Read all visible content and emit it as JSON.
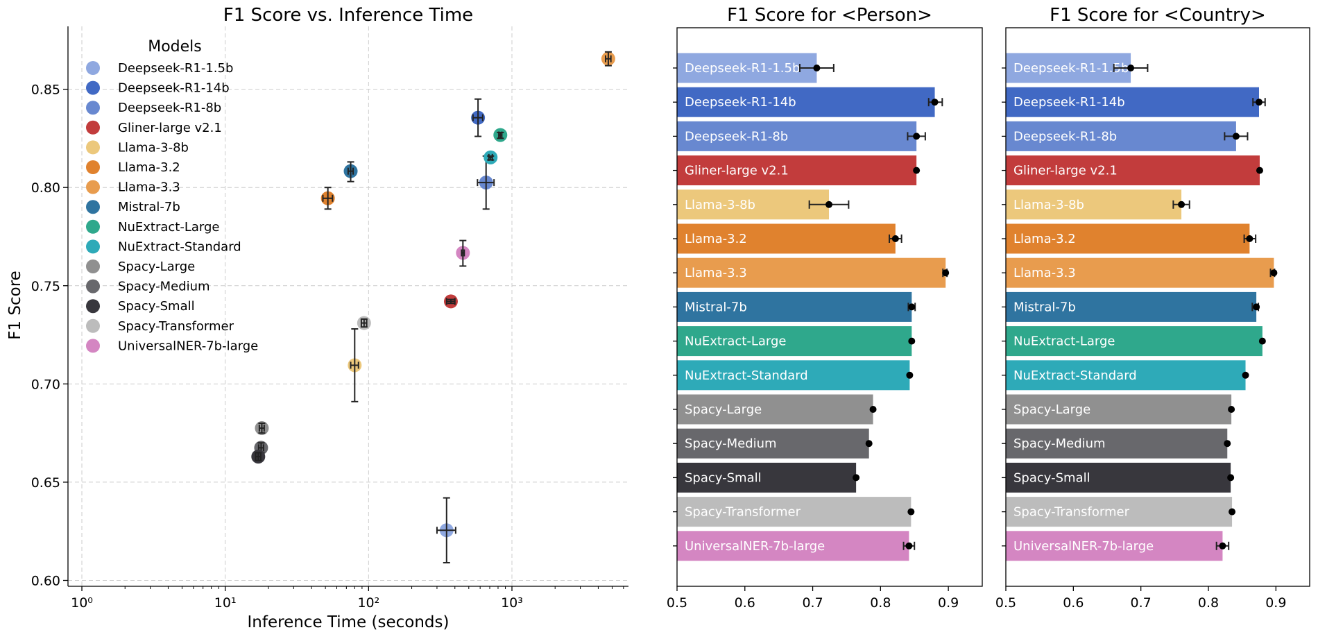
{
  "colors": {
    "Deepseek-R1-1.5b": "#8fa8e0",
    "Deepseek-R1-14b": "#4169c4",
    "Deepseek-R1-8b": "#6888d0",
    "Gliner-large v2.1": "#c23c3c",
    "Llama-3-8b": "#ecc87c",
    "Llama-3.2": "#e0822e",
    "Llama-3.3": "#e89c4e",
    "Mistral-7b": "#2f74a0",
    "NuExtract-Large": "#2fa88c",
    "NuExtract-Standard": "#2eaab8",
    "Spacy-Large": "#909090",
    "Spacy-Medium": "#68686c",
    "Spacy-Small": "#38373d",
    "Spacy-Transformer": "#bcbcbc",
    "UniversalNER-7b-large": "#d486c2"
  },
  "chart_data": [
    {
      "type": "scatter",
      "title": "F1 Score vs. Inference Time",
      "xlabel": "Inference Time (seconds)",
      "ylabel": "F1 Score",
      "xscale": "log",
      "xlim": [
        0.8,
        6500
      ],
      "ylim": [
        0.597,
        0.882
      ],
      "xticks": [
        {
          "value": 1,
          "label": "10⁰"
        },
        {
          "value": 10,
          "label": "10¹"
        },
        {
          "value": 100,
          "label": "10²"
        },
        {
          "value": 1000,
          "label": "10³"
        }
      ],
      "yticks": [
        0.6,
        0.65,
        0.7,
        0.75,
        0.8,
        0.85
      ],
      "grid": true,
      "legend": {
        "title": "Models",
        "location": "upper-left"
      },
      "points": [
        {
          "name": "Deepseek-R1-1.5b",
          "x": 350,
          "y": 0.6255,
          "xerr": [
            300,
            405
          ],
          "yerr": [
            0.609,
            0.642
          ]
        },
        {
          "name": "Deepseek-R1-14b",
          "x": 580,
          "y": 0.8355,
          "xerr": [
            535,
            625
          ],
          "yerr": [
            0.826,
            0.845
          ]
        },
        {
          "name": "Deepseek-R1-8b",
          "x": 660,
          "y": 0.8025,
          "xerr": [
            575,
            750
          ],
          "yerr": [
            0.789,
            0.816
          ]
        },
        {
          "name": "Gliner-large v2.1",
          "x": 375,
          "y": 0.742,
          "xerr": [
            350,
            400
          ],
          "yerr": [
            0.741,
            0.743
          ]
        },
        {
          "name": "Llama-3-8b",
          "x": 80,
          "y": 0.7095,
          "xerr": [
            75,
            85
          ],
          "yerr": [
            0.691,
            0.728
          ]
        },
        {
          "name": "Llama-3.2",
          "x": 52,
          "y": 0.7945,
          "xerr": [
            48,
            56
          ],
          "yerr": [
            0.789,
            0.8
          ]
        },
        {
          "name": "Llama-3.3",
          "x": 4700,
          "y": 0.8655,
          "xerr": [
            4500,
            4900
          ],
          "yerr": [
            0.862,
            0.869
          ]
        },
        {
          "name": "Mistral-7b",
          "x": 75,
          "y": 0.8083,
          "xerr": [
            72,
            78
          ],
          "yerr": [
            0.803,
            0.813
          ]
        },
        {
          "name": "NuExtract-Large",
          "x": 830,
          "y": 0.8267,
          "xerr": [
            810,
            850
          ],
          "yerr": [
            0.825,
            0.828
          ]
        },
        {
          "name": "NuExtract-Standard",
          "x": 710,
          "y": 0.8153,
          "xerr": [
            690,
            730
          ],
          "yerr": [
            0.814,
            0.816
          ]
        },
        {
          "name": "Spacy-Large",
          "x": 18,
          "y": 0.6775,
          "xerr": [
            17.3,
            18.7
          ],
          "yerr": [
            0.675,
            0.68
          ]
        },
        {
          "name": "Spacy-Medium",
          "x": 17.8,
          "y": 0.6675,
          "xerr": [
            17.1,
            18.5
          ],
          "yerr": [
            0.665,
            0.67
          ]
        },
        {
          "name": "Spacy-Small",
          "x": 17,
          "y": 0.663,
          "xerr": [
            16.3,
            17.7
          ],
          "yerr": [
            0.661,
            0.665
          ]
        },
        {
          "name": "Spacy-Transformer",
          "x": 93,
          "y": 0.731,
          "xerr": [
            89,
            97
          ],
          "yerr": [
            0.729,
            0.733
          ]
        },
        {
          "name": "UniversalNER-7b-large",
          "x": 455,
          "y": 0.7667,
          "xerr": [
            445,
            465
          ],
          "yerr": [
            0.76,
            0.773
          ]
        }
      ]
    },
    {
      "type": "bar",
      "orientation": "horizontal",
      "title": "F1 Score for <Person>",
      "xlim": [
        0.5,
        0.95
      ],
      "xticks": [
        0.5,
        0.6,
        0.7,
        0.8,
        0.9
      ],
      "bars": [
        {
          "name": "Deepseek-R1-1.5b",
          "value": 0.706,
          "err": [
            0.681,
            0.731
          ]
        },
        {
          "name": "Deepseek-R1-14b",
          "value": 0.88,
          "err": [
            0.871,
            0.891
          ]
        },
        {
          "name": "Deepseek-R1-8b",
          "value": 0.853,
          "err": [
            0.84,
            0.866
          ]
        },
        {
          "name": "Gliner-large v2.1",
          "value": 0.853,
          "err": [
            0.853,
            0.853
          ]
        },
        {
          "name": "Llama-3-8b",
          "value": 0.724,
          "err": [
            0.695,
            0.753
          ]
        },
        {
          "name": "Llama-3.2",
          "value": 0.822,
          "err": [
            0.813,
            0.831
          ]
        },
        {
          "name": "Llama-3.3",
          "value": 0.896,
          "err": [
            0.892,
            0.898
          ]
        },
        {
          "name": "Mistral-7b",
          "value": 0.846,
          "err": [
            0.841,
            0.851
          ]
        },
        {
          "name": "NuExtract-Large",
          "value": 0.846,
          "err": [
            0.846,
            0.846
          ]
        },
        {
          "name": "NuExtract-Standard",
          "value": 0.843,
          "err": [
            0.843,
            0.843
          ]
        },
        {
          "name": "Spacy-Large",
          "value": 0.789,
          "err": [
            0.789,
            0.789
          ]
        },
        {
          "name": "Spacy-Medium",
          "value": 0.783,
          "err": [
            0.783,
            0.783
          ]
        },
        {
          "name": "Spacy-Small",
          "value": 0.764,
          "err": [
            0.764,
            0.764
          ]
        },
        {
          "name": "Spacy-Transformer",
          "value": 0.845,
          "err": [
            0.845,
            0.845
          ]
        },
        {
          "name": "UniversalNER-7b-large",
          "value": 0.842,
          "err": [
            0.834,
            0.85
          ]
        }
      ]
    },
    {
      "type": "bar",
      "orientation": "horizontal",
      "title": "F1 Score for <Country>",
      "xlim": [
        0.5,
        0.95
      ],
      "xticks": [
        0.5,
        0.6,
        0.7,
        0.8,
        0.9
      ],
      "bars": [
        {
          "name": "Deepseek-R1-1.5b",
          "value": 0.685,
          "err": [
            0.66,
            0.71
          ]
        },
        {
          "name": "Deepseek-R1-14b",
          "value": 0.875,
          "err": [
            0.866,
            0.884
          ]
        },
        {
          "name": "Deepseek-R1-8b",
          "value": 0.841,
          "err": [
            0.824,
            0.858
          ]
        },
        {
          "name": "Gliner-large v2.1",
          "value": 0.876,
          "err": [
            0.876,
            0.876
          ]
        },
        {
          "name": "Llama-3-8b",
          "value": 0.76,
          "err": [
            0.748,
            0.772
          ]
        },
        {
          "name": "Llama-3.2",
          "value": 0.861,
          "err": [
            0.853,
            0.87
          ]
        },
        {
          "name": "Llama-3.3",
          "value": 0.897,
          "err": [
            0.892,
            0.898
          ]
        },
        {
          "name": "Mistral-7b",
          "value": 0.871,
          "err": [
            0.865,
            0.874
          ]
        },
        {
          "name": "NuExtract-Large",
          "value": 0.88,
          "err": [
            0.88,
            0.88
          ]
        },
        {
          "name": "NuExtract-Standard",
          "value": 0.855,
          "err": [
            0.855,
            0.855
          ]
        },
        {
          "name": "Spacy-Large",
          "value": 0.834,
          "err": [
            0.834,
            0.834
          ]
        },
        {
          "name": "Spacy-Medium",
          "value": 0.828,
          "err": [
            0.828,
            0.828
          ]
        },
        {
          "name": "Spacy-Small",
          "value": 0.833,
          "err": [
            0.833,
            0.833
          ]
        },
        {
          "name": "Spacy-Transformer",
          "value": 0.835,
          "err": [
            0.835,
            0.835
          ]
        },
        {
          "name": "UniversalNER-7b-large",
          "value": 0.821,
          "err": [
            0.812,
            0.83
          ]
        }
      ]
    }
  ]
}
